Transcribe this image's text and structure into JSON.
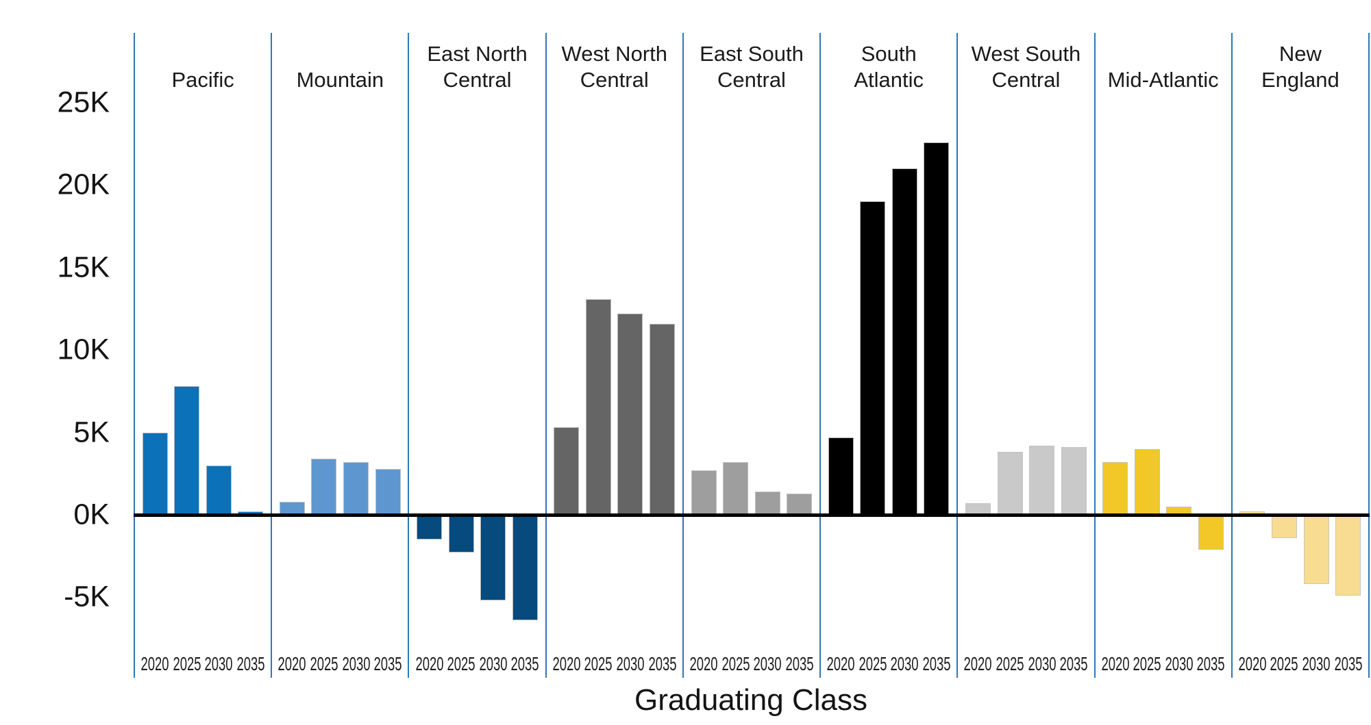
{
  "chart_data": {
    "type": "bar",
    "title": "",
    "xlabel": "Graduating Class",
    "ylabel": "",
    "unit": "thousands",
    "y_ticks": [
      "25K",
      "20K",
      "15K",
      "10K",
      "5K",
      "0K",
      "-5K"
    ],
    "y_tick_values": [
      25,
      20,
      15,
      10,
      5,
      0,
      -5
    ],
    "ylim": [
      -9.9,
      29.2
    ],
    "grid": "off",
    "legend": "none",
    "categories": [
      "2020",
      "2025",
      "2030",
      "2035"
    ],
    "panels": [
      {
        "name": "Pacific",
        "title_lines": [
          "Pacific"
        ],
        "color": "#0b72b9",
        "values": [
          5.0,
          7.8,
          3.0,
          0.2
        ]
      },
      {
        "name": "Mountain",
        "title_lines": [
          "Mountain"
        ],
        "color": "#5e97d0",
        "values": [
          0.8,
          3.4,
          3.2,
          2.8
        ]
      },
      {
        "name": "East North Central",
        "title_lines": [
          "East North",
          "Central"
        ],
        "color": "#074a7d",
        "values": [
          -1.5,
          -2.3,
          -5.2,
          -6.4
        ]
      },
      {
        "name": "West North Central",
        "title_lines": [
          "West North",
          "Central"
        ],
        "color": "#656565",
        "values": [
          5.3,
          13.1,
          12.2,
          11.6
        ]
      },
      {
        "name": "East South Central",
        "title_lines": [
          "East South",
          "Central"
        ],
        "color": "#9e9e9e",
        "values": [
          2.7,
          3.2,
          1.4,
          1.3
        ]
      },
      {
        "name": "South Atlantic",
        "title_lines": [
          "South",
          "Atlantic"
        ],
        "color": "#000000",
        "values": [
          4.7,
          19.0,
          21.0,
          22.6
        ]
      },
      {
        "name": "West South Central",
        "title_lines": [
          "West South",
          "Central"
        ],
        "color": "#c9c9c9",
        "values": [
          0.7,
          3.8,
          4.2,
          4.1
        ]
      },
      {
        "name": "Mid-Atlantic",
        "title_lines": [
          "Mid-Atlantic"
        ],
        "color": "#f2c728",
        "values": [
          3.2,
          4.0,
          0.5,
          -2.1
        ]
      },
      {
        "name": "New England",
        "title_lines": [
          "New",
          "England"
        ],
        "color": "#f8dc92",
        "values": [
          0.2,
          -1.4,
          -4.2,
          -4.9
        ]
      }
    ],
    "colors": {
      "panel_separator": "#2e77b5",
      "zero_axis": "#000000",
      "text": "#141414"
    }
  }
}
